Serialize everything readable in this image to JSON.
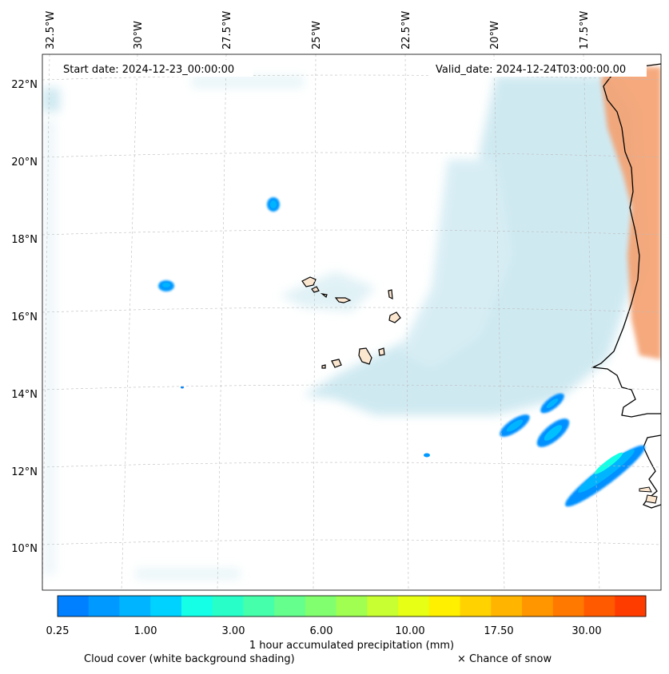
{
  "map": {
    "start_date_label": "Start date: 2024-12-23_00:00:00",
    "valid_date_label": "Valid_date: 2024-12-24T03:00:00.00",
    "lon_ticks": [
      "32.5°W",
      "30°W",
      "27.5°W",
      "25°W",
      "22.5°W",
      "20°W",
      "17.5°W"
    ],
    "lat_ticks": [
      "22°N",
      "20°N",
      "18°N",
      "16°N",
      "14°N",
      "12°N",
      "10°N"
    ],
    "land_color": "#fbe6d0",
    "coast_color": "#000000",
    "cloud_color": "#a8d8e6",
    "warm_land_color": "#f4a070"
  },
  "colorbar": {
    "title": "1 hour accumulated precipitation (mm)",
    "tick_labels": [
      "0.25",
      "1.00",
      "3.00",
      "6.00",
      "10.00",
      "17.50",
      "30.00"
    ],
    "colors": [
      "#0080ff",
      "#0099ff",
      "#00b4ff",
      "#00d2ff",
      "#14ffe6",
      "#28ffc8",
      "#46ffaa",
      "#64ff8c",
      "#82ff6e",
      "#a0ff50",
      "#c8ff32",
      "#e6ff14",
      "#fff000",
      "#ffd200",
      "#ffb400",
      "#ff9600",
      "#ff7800",
      "#ff5a00",
      "#ff3c00"
    ]
  },
  "legend": {
    "cloud_note": "Cloud cover (white background shading)",
    "snow_note": "× Chance of snow"
  }
}
